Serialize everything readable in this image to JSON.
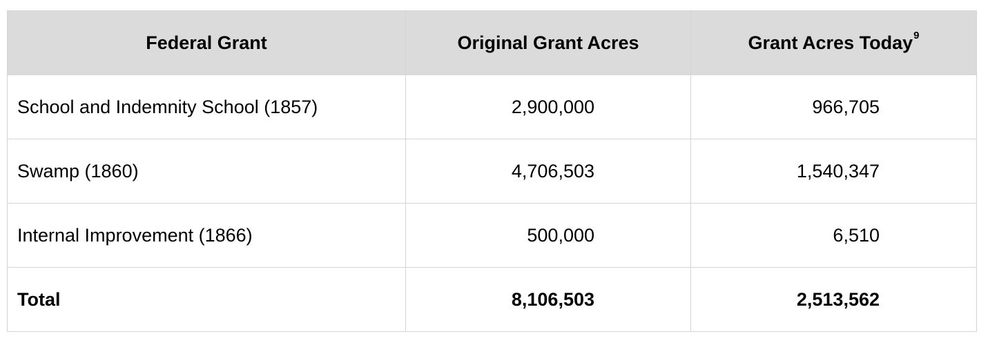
{
  "table": {
    "headers": {
      "federal_grant": "Federal Grant",
      "original_grant_acres": "Original Grant Acres",
      "grant_acres_today": "Grant Acres Today",
      "grant_acres_today_footnote": "9"
    },
    "rows": [
      {
        "federal_grant": "School and Indemnity School (1857)",
        "original_grant_acres": "2,900,000",
        "grant_acres_today": "966,705"
      },
      {
        "federal_grant": "Swamp (1860)",
        "original_grant_acres": "4,706,503",
        "grant_acres_today": "1,540,347"
      },
      {
        "federal_grant": "Internal Improvement (1866)",
        "original_grant_acres": "500,000",
        "grant_acres_today": "6,510"
      }
    ],
    "total": {
      "label": "Total",
      "original_grant_acres": "8,106,503",
      "grant_acres_today": "2,513,562"
    }
  }
}
